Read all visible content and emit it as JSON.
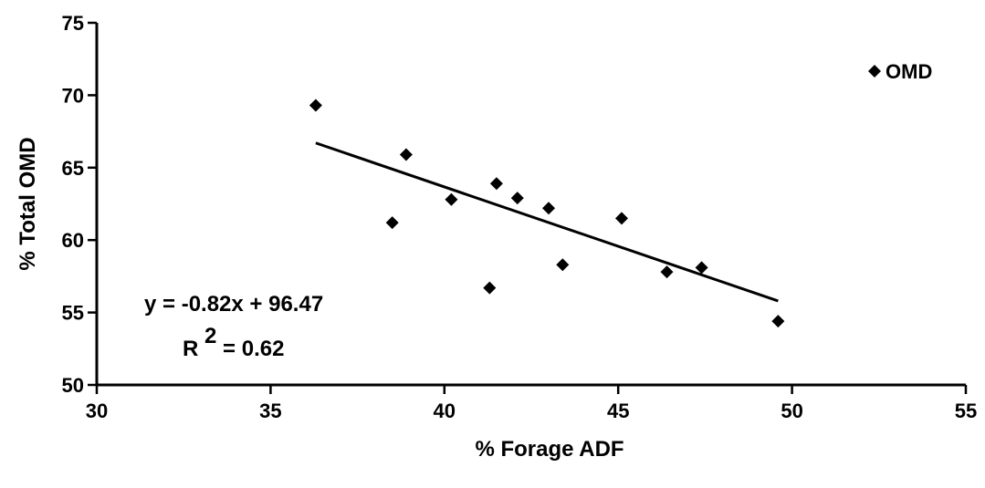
{
  "chart_data": {
    "type": "scatter",
    "title": "",
    "xlabel": "% Forage ADF",
    "ylabel": "% Total OMD",
    "xlim": [
      30,
      55
    ],
    "ylim": [
      50,
      75
    ],
    "x_ticks": [
      "30",
      "35",
      "40",
      "45",
      "50",
      "55"
    ],
    "y_ticks": [
      "50",
      "55",
      "60",
      "65",
      "70",
      "75"
    ],
    "grid": false,
    "legend_position": "top-right",
    "series": [
      {
        "name": "OMD",
        "marker": "diamond",
        "color": "#000000",
        "points": [
          {
            "x": 36.3,
            "y": 69.3
          },
          {
            "x": 38.9,
            "y": 65.9
          },
          {
            "x": 38.5,
            "y": 61.2
          },
          {
            "x": 40.2,
            "y": 62.8
          },
          {
            "x": 41.3,
            "y": 56.7
          },
          {
            "x": 41.5,
            "y": 63.9
          },
          {
            "x": 42.1,
            "y": 62.9
          },
          {
            "x": 43.0,
            "y": 62.2
          },
          {
            "x": 43.4,
            "y": 58.3
          },
          {
            "x": 45.1,
            "y": 61.5
          },
          {
            "x": 46.4,
            "y": 57.8
          },
          {
            "x": 47.4,
            "y": 58.1
          },
          {
            "x": 49.6,
            "y": 54.4
          }
        ]
      }
    ],
    "trendline": {
      "slope": -0.82,
      "intercept": 96.47,
      "x_range": [
        36.3,
        49.6
      ]
    },
    "annotations": {
      "equation": "y = -0.82x + 96.47",
      "r2_label": "R",
      "r2_sup": "2",
      "r2_value": " = 0.62"
    }
  }
}
